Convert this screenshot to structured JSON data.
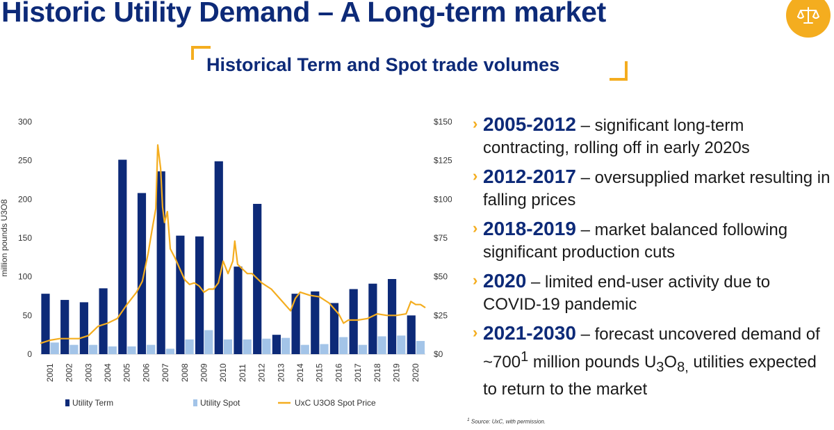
{
  "slide": {
    "title": "Historic Utility Demand – A Long-term market",
    "subtitle": "Historical Term and Spot trade volumes",
    "logo_icon": "scales-of-justice-icon",
    "accent_color": "#f4ad1f",
    "title_color": "#0d2a78"
  },
  "bullets": [
    {
      "years": "2005-2012",
      "text": " – significant long-term contracting, rolling off in early 2020s"
    },
    {
      "years": "2012-2017",
      "text": " – oversupplied market resulting in falling prices"
    },
    {
      "years": "2018-2019",
      "text": " – market balanced following significant production cuts"
    },
    {
      "years": "2020",
      "text": " – limited end-user activity due to COVID-19 pandemic"
    },
    {
      "years": "2021-2030",
      "text_before_sup": " – forecast uncovered demand of ~700",
      "sup": "1",
      "text_mid": " million pounds U",
      "sub1": "3",
      "text_o": "O",
      "sub2": "8,",
      "text_after": " utilities expected to return to the market"
    }
  ],
  "footnote": {
    "marker": "1",
    "text": " Source: UxC, with permission."
  },
  "chart_data": {
    "type": "bar",
    "categories": [
      "2001",
      "2002",
      "2003",
      "2004",
      "2005",
      "2006",
      "2007",
      "2008",
      "2009",
      "2010",
      "2011",
      "2012",
      "2013",
      "2014",
      "2015",
      "2016",
      "2017",
      "2018",
      "2019",
      "2020"
    ],
    "series": [
      {
        "name": "Utility Term",
        "color": "#0d2a78",
        "values": [
          78,
          70,
          67,
          85,
          251,
          208,
          236,
          153,
          152,
          249,
          113,
          194,
          25,
          78,
          81,
          66,
          84,
          91,
          97,
          50
        ]
      },
      {
        "name": "Utility Spot",
        "color": "#a3c4e8",
        "values": [
          15,
          12,
          12,
          10,
          10,
          12,
          7,
          19,
          31,
          19,
          19,
          20,
          21,
          12,
          13,
          22,
          12,
          23,
          24,
          17
        ]
      }
    ],
    "line": {
      "name": "UxC U3O8 Spot Price",
      "color": "#f4ad1f",
      "x": [
        2001.0,
        2001.5,
        2002.0,
        2002.5,
        2003.0,
        2003.5,
        2004.0,
        2004.5,
        2005.0,
        2005.5,
        2006.0,
        2006.3,
        2006.6,
        2006.8,
        2007.0,
        2007.1,
        2007.25,
        2007.35,
        2007.45,
        2007.6,
        2007.75,
        2008.0,
        2008.25,
        2008.5,
        2008.75,
        2009.0,
        2009.25,
        2009.5,
        2009.75,
        2010.0,
        2010.25,
        2010.5,
        2010.75,
        2011.0,
        2011.1,
        2011.25,
        2011.5,
        2011.75,
        2012.0,
        2012.5,
        2013.0,
        2013.5,
        2014.0,
        2014.25,
        2014.5,
        2015.0,
        2015.5,
        2016.0,
        2016.5,
        2016.75,
        2017.0,
        2017.5,
        2018.0,
        2018.5,
        2019.0,
        2019.5,
        2020.0,
        2020.25,
        2020.5,
        2020.75,
        2021.0
      ],
      "y": [
        7,
        9,
        10,
        10,
        10,
        12,
        18,
        20,
        23,
        32,
        40,
        47,
        65,
        80,
        94,
        135,
        120,
        95,
        85,
        92,
        68,
        62,
        55,
        48,
        45,
        46,
        44,
        40,
        42,
        42,
        46,
        60,
        52,
        60,
        73,
        58,
        55,
        52,
        52,
        46,
        42,
        35,
        28,
        36,
        40,
        38,
        37,
        33,
        26,
        20,
        22,
        22,
        23,
        26,
        25,
        25,
        26,
        34,
        32,
        32,
        30
      ]
    },
    "y_left": {
      "label": "million pounds U3O8",
      "range": [
        0,
        300
      ],
      "ticks": [
        "0",
        "50",
        "100",
        "150",
        "200",
        "250",
        "300"
      ]
    },
    "y_right": {
      "label": "",
      "range": [
        0,
        150
      ],
      "ticks": [
        "$0",
        "$25",
        "$50",
        "$75",
        "$100",
        "$125",
        "$150"
      ]
    },
    "legend": {
      "placement": "bottom",
      "items": [
        "Utility Term",
        "Utility Spot",
        "UxC U3O8 Spot Price"
      ]
    },
    "grid": false
  }
}
